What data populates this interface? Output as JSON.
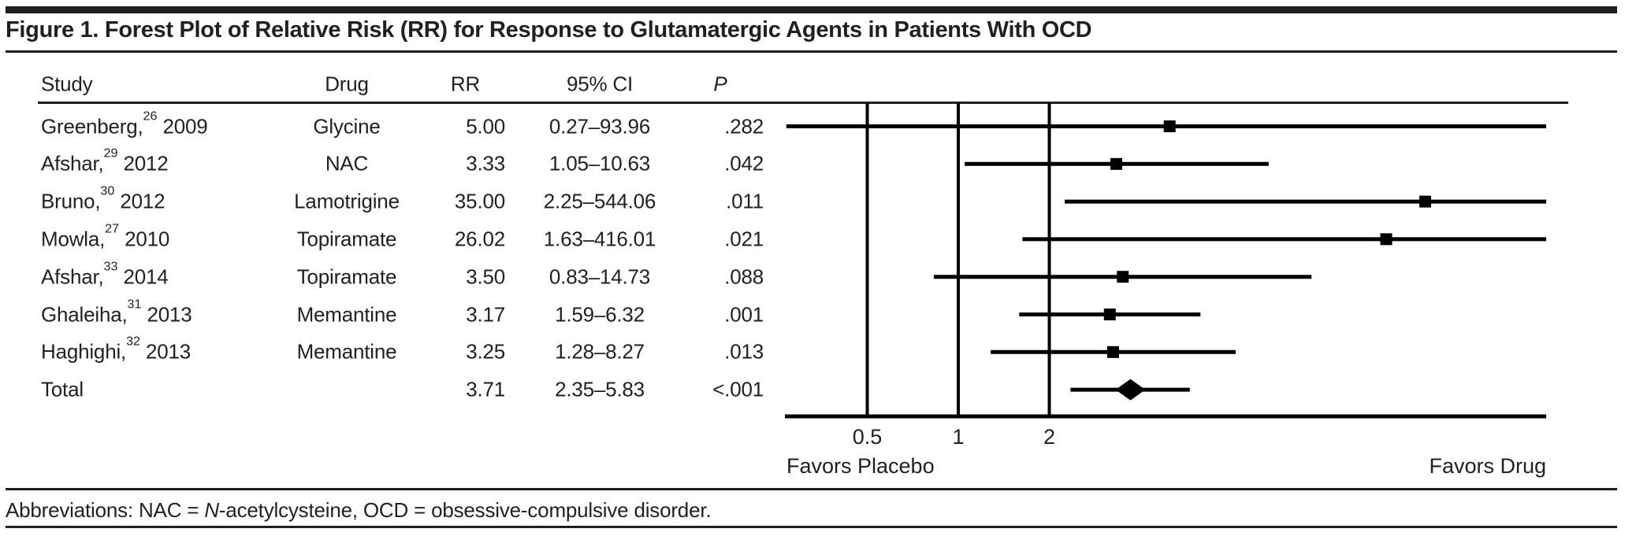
{
  "figure": {
    "title": "Figure 1. Forest Plot of Relative Risk (RR) for Response to Glutamatergic Agents in Patients With OCD",
    "abbreviations": {
      "prefix": "Abbreviations: NAC = ",
      "italic": "N",
      "suffix": "-acetylcysteine, OCD = obsessive-compulsive disorder."
    }
  },
  "table": {
    "headers": {
      "study": "Study",
      "drug": "Drug",
      "rr": "RR",
      "ci": "95% CI",
      "p": "P"
    }
  },
  "chart_data": {
    "type": "forest",
    "title": "Forest Plot of Relative Risk (RR) for Response to Glutamatergic Agents in Patients With OCD",
    "x_scale": "log",
    "tick_values": [
      0.5,
      1,
      2
    ],
    "tick_labels": [
      "0.5",
      "1",
      "2"
    ],
    "left_label": "Favors Placebo",
    "right_label": "Favors Drug",
    "studies": [
      {
        "study": "Greenberg,",
        "ref": "26",
        "year": "2009",
        "drug": "Glycine",
        "rr": 5.0,
        "rr_text": "5.00",
        "ci_low": 0.27,
        "ci_high": 93.96,
        "ci_text": "0.27–93.96",
        "p": ".282",
        "marker": "square"
      },
      {
        "study": "Afshar,",
        "ref": "29",
        "year": "2012",
        "drug": "NAC",
        "rr": 3.33,
        "rr_text": "3.33",
        "ci_low": 1.05,
        "ci_high": 10.63,
        "ci_text": "1.05–10.63",
        "p": ".042",
        "marker": "square"
      },
      {
        "study": "Bruno,",
        "ref": "30",
        "year": "2012",
        "drug": "Lamotrigine",
        "rr": 35.0,
        "rr_text": "35.00",
        "ci_low": 2.25,
        "ci_high": 544.06,
        "ci_text": "2.25–544.06",
        "p": ".011",
        "marker": "square"
      },
      {
        "study": "Mowla,",
        "ref": "27",
        "year": "2010",
        "drug": "Topiramate",
        "rr": 26.02,
        "rr_text": "26.02",
        "ci_low": 1.63,
        "ci_high": 416.01,
        "ci_text": "1.63–416.01",
        "p": ".021",
        "marker": "square"
      },
      {
        "study": "Afshar,",
        "ref": "33",
        "year": "2014",
        "drug": "Topiramate",
        "rr": 3.5,
        "rr_text": "3.50",
        "ci_low": 0.83,
        "ci_high": 14.73,
        "ci_text": "0.83–14.73",
        "p": ".088",
        "marker": "square"
      },
      {
        "study": "Ghaleiha,",
        "ref": "31",
        "year": "2013",
        "drug": "Memantine",
        "rr": 3.17,
        "rr_text": "3.17",
        "ci_low": 1.59,
        "ci_high": 6.32,
        "ci_text": "1.59–6.32",
        "p": ".001",
        "marker": "square"
      },
      {
        "study": "Haghighi,",
        "ref": "32",
        "year": "2013",
        "drug": "Memantine",
        "rr": 3.25,
        "rr_text": "3.25",
        "ci_low": 1.28,
        "ci_high": 8.27,
        "ci_text": "1.28–8.27",
        "p": ".013",
        "marker": "square"
      },
      {
        "study": "Total",
        "ref": "",
        "year": "",
        "drug": "",
        "rr": 3.71,
        "rr_text": "3.71",
        "ci_low": 2.35,
        "ci_high": 5.83,
        "ci_text": "2.35–5.83",
        "p": "<.001",
        "marker": "diamond"
      }
    ]
  },
  "colors": {
    "ink": "#231f20",
    "plot_line": "#000000",
    "background": "#ffffff"
  }
}
